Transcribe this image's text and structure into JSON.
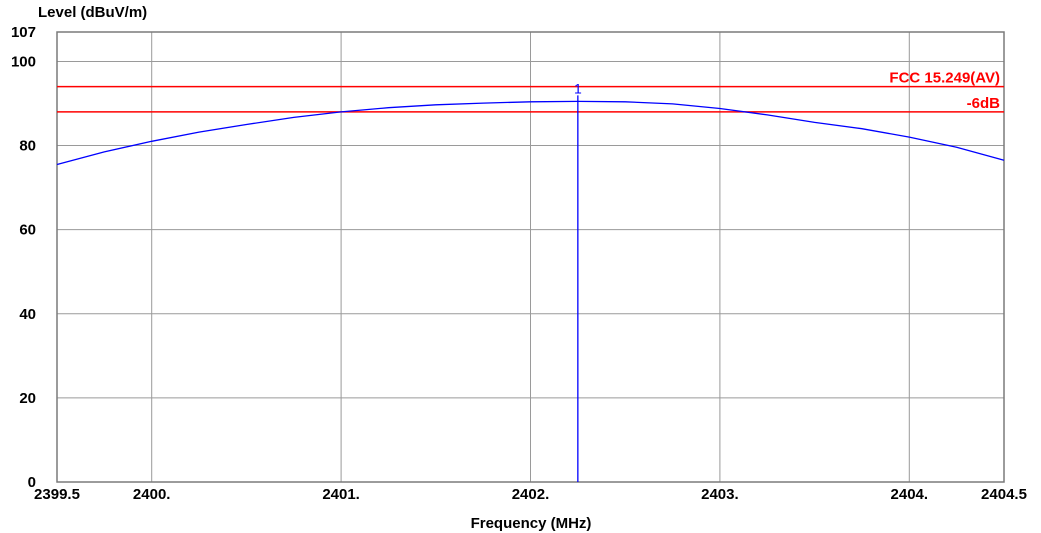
{
  "chart_data": {
    "type": "line",
    "xlabel": "Frequency (MHz)",
    "ylabel": "Level (dBuV/m)",
    "xlim": [
      2399.5,
      2404.5
    ],
    "ylim": [
      0,
      107
    ],
    "x_ticks": [
      {
        "value": 2399.5,
        "label": "2399.5"
      },
      {
        "value": 2400,
        "label": "2400."
      },
      {
        "value": 2401,
        "label": "2401."
      },
      {
        "value": 2402,
        "label": "2402."
      },
      {
        "value": 2403,
        "label": "2403."
      },
      {
        "value": 2404,
        "label": "2404."
      },
      {
        "value": 2404.5,
        "label": "2404.5"
      }
    ],
    "y_ticks": [
      {
        "value": 0,
        "label": "0"
      },
      {
        "value": 20,
        "label": "20"
      },
      {
        "value": 40,
        "label": "40"
      },
      {
        "value": 60,
        "label": "60"
      },
      {
        "value": 80,
        "label": "80"
      },
      {
        "value": 100,
        "label": "100"
      },
      {
        "value": 107,
        "label": "107"
      }
    ],
    "grid": true,
    "series": [
      {
        "color": "#0000ff",
        "x": [
          2399.5,
          2399.75,
          2400,
          2400.25,
          2400.5,
          2400.75,
          2401,
          2401.25,
          2401.5,
          2401.75,
          2402,
          2402.25,
          2402.5,
          2402.75,
          2403,
          2403.25,
          2403.5,
          2403.75,
          2404,
          2404.25,
          2404.5
        ],
        "y": [
          75.5,
          78.5,
          81,
          83.2,
          85,
          86.7,
          88,
          89,
          89.7,
          90.1,
          90.4,
          90.5,
          90.4,
          89.9,
          88.8,
          87.3,
          85.5,
          84,
          82,
          79.6,
          76.5
        ]
      }
    ],
    "limit_lines": [
      {
        "label": "FCC 15.249(AV)",
        "value": 94,
        "color": "#ff0000"
      },
      {
        "label": "-6dB",
        "value": 88,
        "color": "#ff0000"
      }
    ],
    "markers": [
      {
        "label": "1",
        "x": 2402.25,
        "y": 90.5,
        "color": "#0000ff"
      }
    ]
  }
}
